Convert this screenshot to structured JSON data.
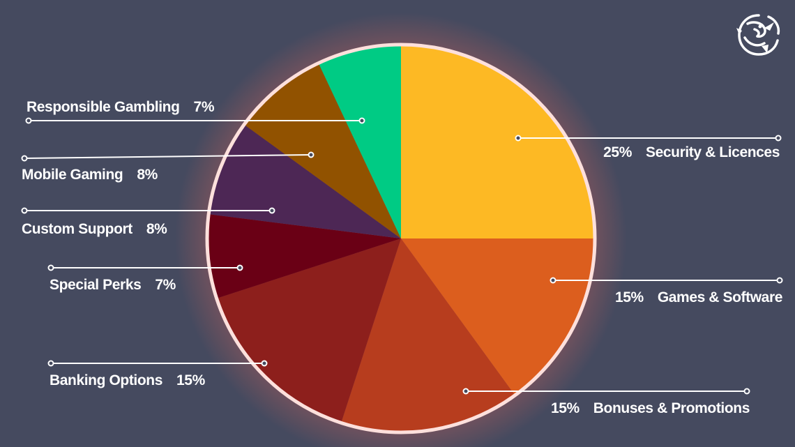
{
  "chart_data": {
    "type": "pie",
    "title": "",
    "start_angle_deg": 0,
    "direction": "clockwise",
    "slices": [
      {
        "label": "Security & Licences",
        "value": 25,
        "display": "25%",
        "color": "#fdb924",
        "label_side": "right"
      },
      {
        "label": "Games & Software",
        "value": 15,
        "display": "15%",
        "color": "#dc5e1e",
        "label_side": "right"
      },
      {
        "label": "Bonuses & Promotions",
        "value": 15,
        "display": "15%",
        "color": "#b73d1e",
        "label_side": "right"
      },
      {
        "label": "Banking Options",
        "value": 15,
        "display": "15%",
        "color": "#8d1f1c",
        "label_side": "left"
      },
      {
        "label": "Special Perks",
        "value": 7,
        "display": "7%",
        "color": "#6a0015",
        "label_side": "left"
      },
      {
        "label": "Custom Support",
        "value": 8,
        "display": "8%",
        "color": "#4d2755",
        "label_side": "left"
      },
      {
        "label": "Mobile Gaming",
        "value": 8,
        "display": "8%",
        "color": "#915200",
        "label_side": "left"
      },
      {
        "label": "Responsible Gambling",
        "value": 7,
        "display": "7%",
        "color": "#00cb84",
        "label_side": "left"
      }
    ]
  },
  "colors": {
    "background": "#454a5f",
    "pie_border": "#fde0dc",
    "glow": "#ff6a5a",
    "label_text": "#ffffff"
  },
  "logo": {
    "icon": "dragon-logo-icon"
  }
}
